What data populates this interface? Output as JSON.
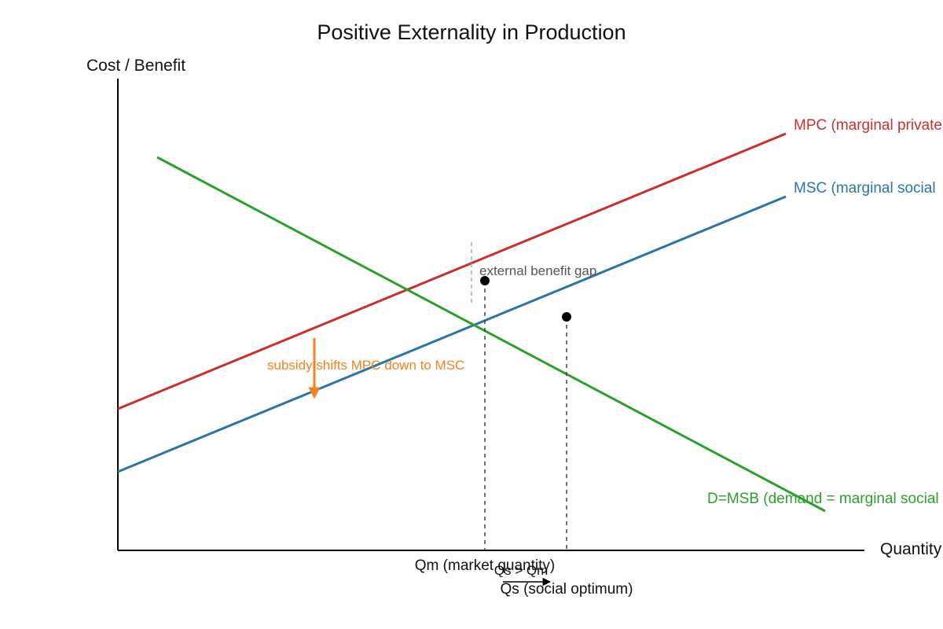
{
  "title": "Positive Externality in Production",
  "y_axis_label": "Cost / Benefit",
  "x_axis_label": "Quantity",
  "colors": {
    "mpc": "#c8302e",
    "msc": "#2a75a8",
    "demand": "#2ca02c",
    "subsidy": "#f5821f",
    "axis": "#000000",
    "guide": "#444444",
    "gap": "#aaaaaa",
    "annotation_text": "#555555"
  },
  "curves": {
    "mpc": {
      "label": "MPC (marginal private"
    },
    "msc": {
      "label": "MSC (marginal social"
    },
    "demand": {
      "label": "D=MSB (demand = marginal social"
    }
  },
  "annotations": {
    "external_benefit_gap": "external benefit gap",
    "subsidy": "subsidy shifts MPC down to MSC",
    "qs_gt_qm": "Qs > Qm"
  },
  "quantities": {
    "qm": "Qm (market quantity)",
    "qs": "Qs (social optimum)"
  }
}
